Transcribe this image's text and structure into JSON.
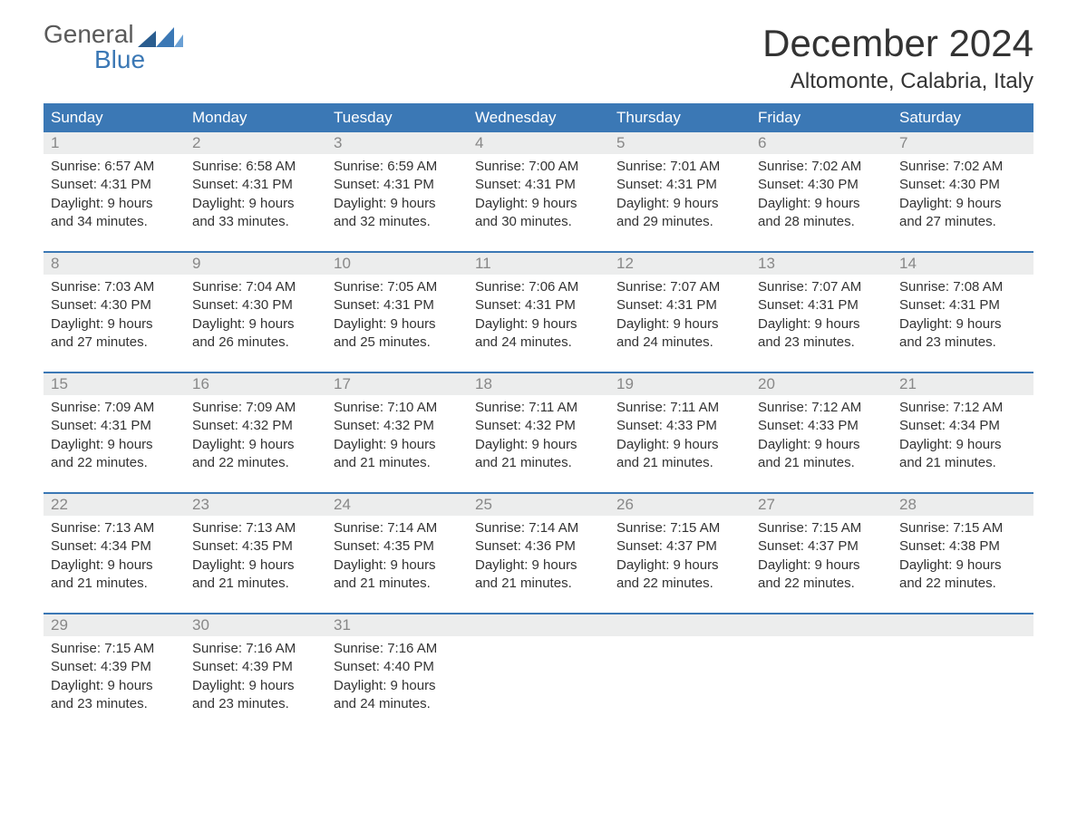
{
  "logo": {
    "word1": "General",
    "word2": "Blue"
  },
  "title": "December 2024",
  "location": "Altomonte, Calabria, Italy",
  "colors": {
    "header_bg": "#3b78b5",
    "header_text": "#ffffff",
    "daynum_bg": "#eceded",
    "daynum_text": "#888888",
    "body_text": "#333333",
    "week_border": "#3b78b5",
    "logo_gray": "#5a5a5a",
    "logo_blue": "#3b78b5",
    "page_bg": "#ffffff"
  },
  "typography": {
    "title_fontsize": 42,
    "location_fontsize": 24,
    "dow_fontsize": 17,
    "daynum_fontsize": 17,
    "dayinfo_fontsize": 15,
    "logo_fontsize": 28
  },
  "days_of_week": [
    "Sunday",
    "Monday",
    "Tuesday",
    "Wednesday",
    "Thursday",
    "Friday",
    "Saturday"
  ],
  "weeks": [
    [
      {
        "num": "1",
        "sunrise": "6:57 AM",
        "sunset": "4:31 PM",
        "dl_h": 9,
        "dl_m": 34
      },
      {
        "num": "2",
        "sunrise": "6:58 AM",
        "sunset": "4:31 PM",
        "dl_h": 9,
        "dl_m": 33
      },
      {
        "num": "3",
        "sunrise": "6:59 AM",
        "sunset": "4:31 PM",
        "dl_h": 9,
        "dl_m": 32
      },
      {
        "num": "4",
        "sunrise": "7:00 AM",
        "sunset": "4:31 PM",
        "dl_h": 9,
        "dl_m": 30
      },
      {
        "num": "5",
        "sunrise": "7:01 AM",
        "sunset": "4:31 PM",
        "dl_h": 9,
        "dl_m": 29
      },
      {
        "num": "6",
        "sunrise": "7:02 AM",
        "sunset": "4:30 PM",
        "dl_h": 9,
        "dl_m": 28
      },
      {
        "num": "7",
        "sunrise": "7:02 AM",
        "sunset": "4:30 PM",
        "dl_h": 9,
        "dl_m": 27
      }
    ],
    [
      {
        "num": "8",
        "sunrise": "7:03 AM",
        "sunset": "4:30 PM",
        "dl_h": 9,
        "dl_m": 27
      },
      {
        "num": "9",
        "sunrise": "7:04 AM",
        "sunset": "4:30 PM",
        "dl_h": 9,
        "dl_m": 26
      },
      {
        "num": "10",
        "sunrise": "7:05 AM",
        "sunset": "4:31 PM",
        "dl_h": 9,
        "dl_m": 25
      },
      {
        "num": "11",
        "sunrise": "7:06 AM",
        "sunset": "4:31 PM",
        "dl_h": 9,
        "dl_m": 24
      },
      {
        "num": "12",
        "sunrise": "7:07 AM",
        "sunset": "4:31 PM",
        "dl_h": 9,
        "dl_m": 24
      },
      {
        "num": "13",
        "sunrise": "7:07 AM",
        "sunset": "4:31 PM",
        "dl_h": 9,
        "dl_m": 23
      },
      {
        "num": "14",
        "sunrise": "7:08 AM",
        "sunset": "4:31 PM",
        "dl_h": 9,
        "dl_m": 23
      }
    ],
    [
      {
        "num": "15",
        "sunrise": "7:09 AM",
        "sunset": "4:31 PM",
        "dl_h": 9,
        "dl_m": 22
      },
      {
        "num": "16",
        "sunrise": "7:09 AM",
        "sunset": "4:32 PM",
        "dl_h": 9,
        "dl_m": 22
      },
      {
        "num": "17",
        "sunrise": "7:10 AM",
        "sunset": "4:32 PM",
        "dl_h": 9,
        "dl_m": 21
      },
      {
        "num": "18",
        "sunrise": "7:11 AM",
        "sunset": "4:32 PM",
        "dl_h": 9,
        "dl_m": 21
      },
      {
        "num": "19",
        "sunrise": "7:11 AM",
        "sunset": "4:33 PM",
        "dl_h": 9,
        "dl_m": 21
      },
      {
        "num": "20",
        "sunrise": "7:12 AM",
        "sunset": "4:33 PM",
        "dl_h": 9,
        "dl_m": 21
      },
      {
        "num": "21",
        "sunrise": "7:12 AM",
        "sunset": "4:34 PM",
        "dl_h": 9,
        "dl_m": 21
      }
    ],
    [
      {
        "num": "22",
        "sunrise": "7:13 AM",
        "sunset": "4:34 PM",
        "dl_h": 9,
        "dl_m": 21
      },
      {
        "num": "23",
        "sunrise": "7:13 AM",
        "sunset": "4:35 PM",
        "dl_h": 9,
        "dl_m": 21
      },
      {
        "num": "24",
        "sunrise": "7:14 AM",
        "sunset": "4:35 PM",
        "dl_h": 9,
        "dl_m": 21
      },
      {
        "num": "25",
        "sunrise": "7:14 AM",
        "sunset": "4:36 PM",
        "dl_h": 9,
        "dl_m": 21
      },
      {
        "num": "26",
        "sunrise": "7:15 AM",
        "sunset": "4:37 PM",
        "dl_h": 9,
        "dl_m": 22
      },
      {
        "num": "27",
        "sunrise": "7:15 AM",
        "sunset": "4:37 PM",
        "dl_h": 9,
        "dl_m": 22
      },
      {
        "num": "28",
        "sunrise": "7:15 AM",
        "sunset": "4:38 PM",
        "dl_h": 9,
        "dl_m": 22
      }
    ],
    [
      {
        "num": "29",
        "sunrise": "7:15 AM",
        "sunset": "4:39 PM",
        "dl_h": 9,
        "dl_m": 23
      },
      {
        "num": "30",
        "sunrise": "7:16 AM",
        "sunset": "4:39 PM",
        "dl_h": 9,
        "dl_m": 23
      },
      {
        "num": "31",
        "sunrise": "7:16 AM",
        "sunset": "4:40 PM",
        "dl_h": 9,
        "dl_m": 24
      },
      null,
      null,
      null,
      null
    ]
  ],
  "labels": {
    "sunrise": "Sunrise:",
    "sunset": "Sunset:",
    "daylight": "Daylight:",
    "hours": "hours",
    "and": "and",
    "minutes": "minutes."
  }
}
